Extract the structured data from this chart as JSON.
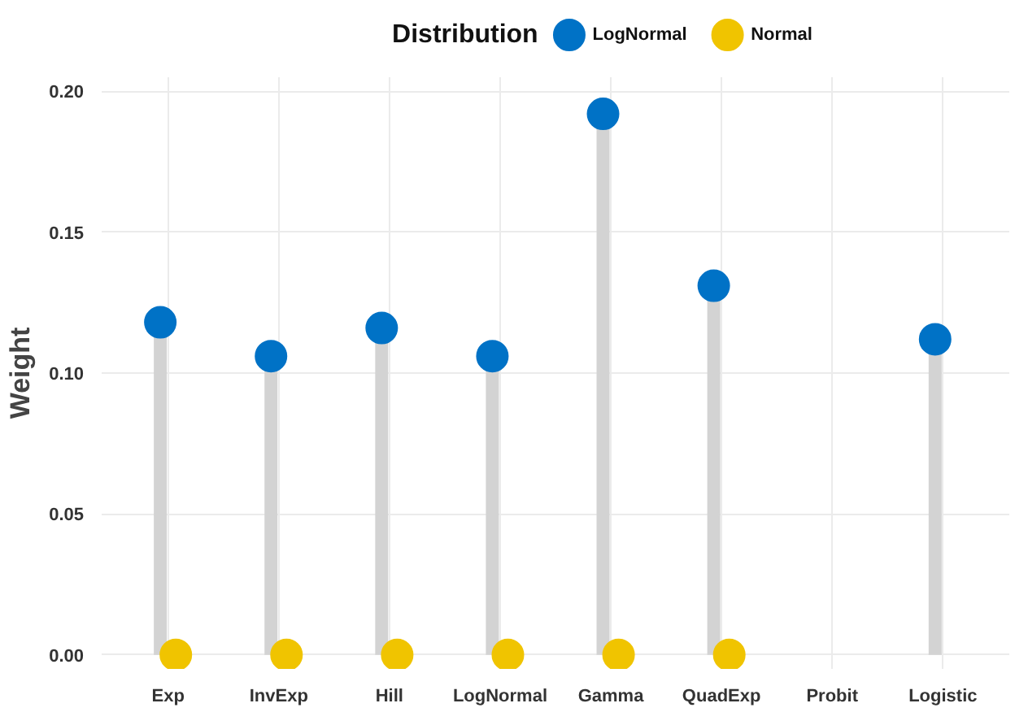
{
  "chart_data": {
    "type": "lollipop",
    "ylabel": "Weight",
    "legend_title": "Distribution",
    "legend": "top",
    "categories": [
      "Exp",
      "InvExp",
      "Hill",
      "LogNormal",
      "Gamma",
      "QuadExp",
      "Probit",
      "Logistic"
    ],
    "series": [
      {
        "name": "LogNormal",
        "color": "#0072c6",
        "values": [
          0.118,
          0.106,
          0.116,
          0.106,
          0.192,
          0.131,
          null,
          0.112
        ]
      },
      {
        "name": "Normal",
        "color": "#f0c400",
        "values": [
          0,
          0,
          0,
          0,
          0,
          0,
          null,
          null
        ]
      }
    ],
    "ylim": [
      -0.005,
      0.205
    ],
    "yticks": [
      {
        "value": 0,
        "label": "0.00"
      },
      0.05,
      {
        "value": 0.1,
        "label": "0.10"
      },
      0.15,
      {
        "value": 0.2,
        "label": "0.20"
      }
    ],
    "grid": true,
    "marker": "circle"
  }
}
